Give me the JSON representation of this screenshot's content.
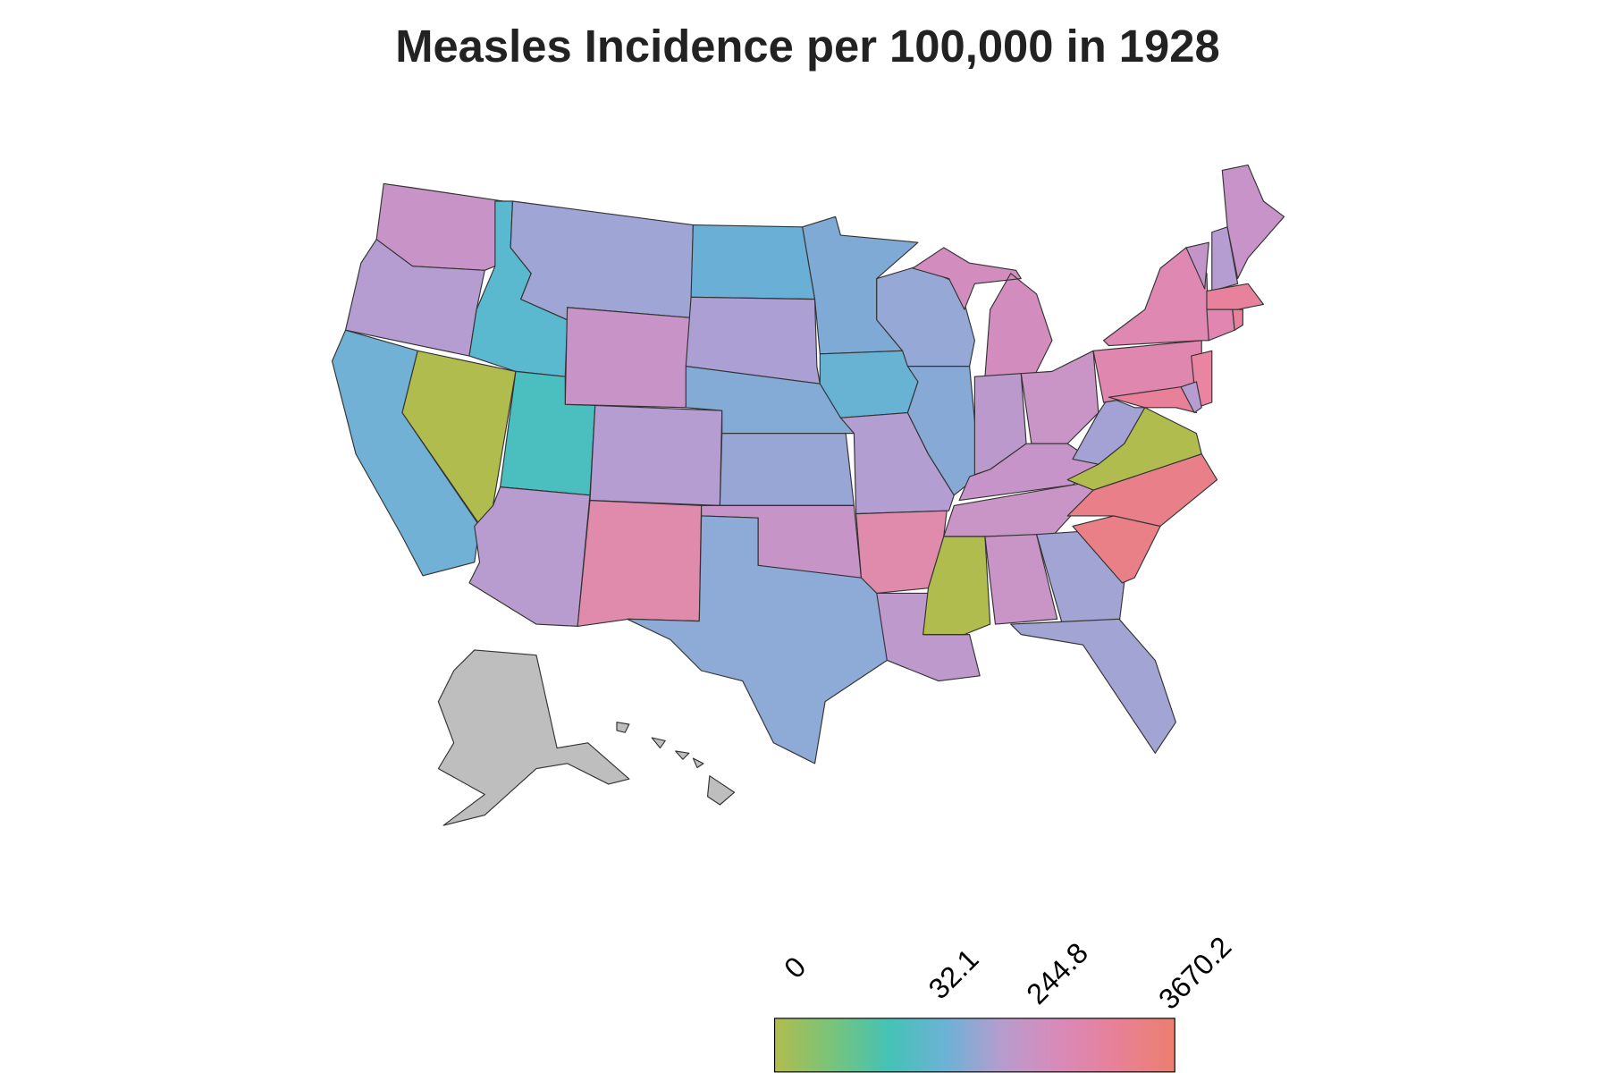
{
  "title": "Measles Incidence per 100,000 in 1928",
  "legend": {
    "labels": [
      "0",
      "32.1",
      "244.8",
      "3670.2"
    ],
    "gradient": [
      "#b1bc4f",
      "#78c47a",
      "#45c2b6",
      "#6cb2d6",
      "#b89ccd",
      "#d98ab8",
      "#e88097",
      "#ec7f6e"
    ]
  },
  "missing_color": "#bebebe",
  "states": {
    "WA": "#c894c8",
    "OR": "#b59dd2",
    "CA": "#72b1d6",
    "NV": "#b1bc4f",
    "ID": "#5ab8cf",
    "MT": "#9fa5d4",
    "WY": "#c894c8",
    "UT": "#4bbfbf",
    "AZ": "#b89bcf",
    "CO": "#b59dd2",
    "NM": "#e08aac",
    "ND": "#6ab0d6",
    "SD": "#ab9fd3",
    "NE": "#84aad6",
    "KS": "#98a6d6",
    "OK": "#c794c8",
    "TX": "#8eaad6",
    "MN": "#80aad6",
    "IA": "#68b2d4",
    "MO": "#b29ed0",
    "AR": "#e08aac",
    "LA": "#bd99cc",
    "WI": "#96a8d6",
    "IL": "#86a9d6",
    "MI": "#d28cbe",
    "IN": "#bc99cc",
    "OH": "#c994c6",
    "KY": "#c694c8",
    "TN": "#c994c6",
    "MS": "#b1bc4f",
    "AL": "#c994c6",
    "GA": "#a2a4d4",
    "FL": "#a2a4d4",
    "SC": "#e98088",
    "NC": "#e97f88",
    "VA": "#b1bc4f",
    "WV": "#a4a2d4",
    "PA": "#e087b0",
    "NY": "#df88b2",
    "NJ": "#e985a0",
    "MD": "#e8809a",
    "DE": "#b59dd2",
    "VT": "#c394c8",
    "NH": "#b59dd2",
    "ME": "#c893c8",
    "MA": "#e8829c",
    "CT": "#e086b0",
    "RI": "#e8829c",
    "AK": "#bebebe",
    "HI": "#bebebe"
  }
}
